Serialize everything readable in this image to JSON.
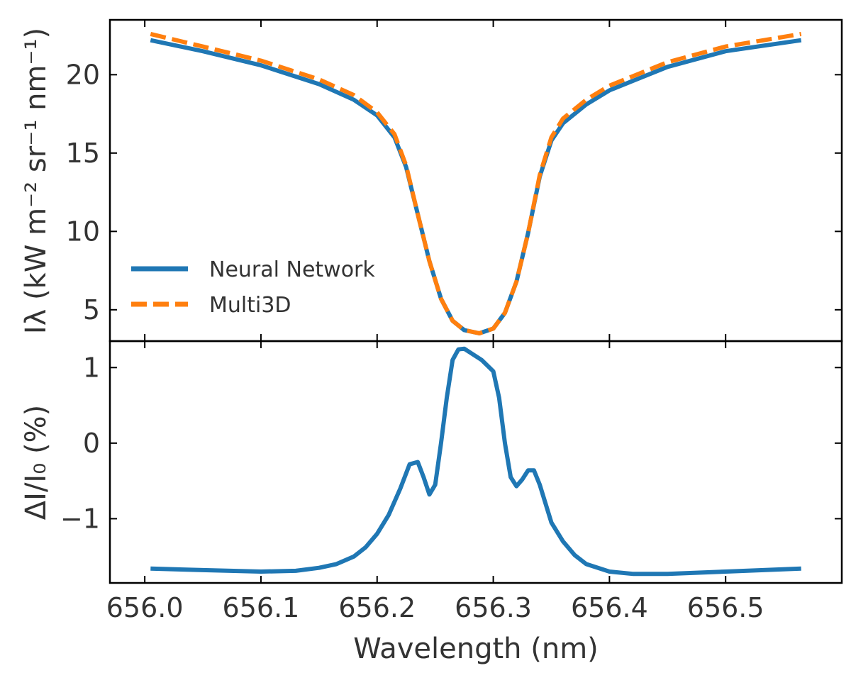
{
  "chart_data": [
    {
      "type": "line",
      "panel": "top",
      "ylabel": "Iλ (kW m⁻² sr⁻¹ nm⁻¹)",
      "xlabel": "",
      "xlim": [
        655.97,
        656.6
      ],
      "ylim": [
        3.0,
        23.5
      ],
      "yticks": [
        5,
        10,
        15,
        20
      ],
      "ytick_labels": [
        "5",
        "10",
        "15",
        "20"
      ],
      "legend": {
        "placement": "lower-left"
      },
      "series": [
        {
          "name": "Neural Network",
          "color": "#1f77b4",
          "style": "solid",
          "x": [
            656.005,
            656.05,
            656.1,
            656.15,
            656.18,
            656.2,
            656.215,
            656.225,
            656.235,
            656.245,
            656.255,
            656.265,
            656.275,
            656.288,
            656.3,
            656.31,
            656.32,
            656.33,
            656.34,
            656.35,
            656.36,
            656.38,
            656.4,
            656.45,
            656.5,
            656.565
          ],
          "y": [
            22.2,
            21.5,
            20.6,
            19.4,
            18.4,
            17.4,
            16.0,
            14.1,
            11.1,
            8.1,
            5.7,
            4.3,
            3.7,
            3.5,
            3.8,
            4.8,
            6.8,
            9.9,
            13.5,
            15.8,
            16.9,
            18.1,
            19.0,
            20.5,
            21.5,
            22.2
          ]
        },
        {
          "name": "Multi3D",
          "color": "#ff7f0e",
          "style": "dashed",
          "x": [
            656.005,
            656.05,
            656.1,
            656.15,
            656.18,
            656.2,
            656.215,
            656.225,
            656.235,
            656.245,
            656.255,
            656.265,
            656.275,
            656.288,
            656.3,
            656.31,
            656.32,
            656.33,
            656.34,
            656.35,
            656.36,
            656.38,
            656.4,
            656.45,
            656.5,
            656.565
          ],
          "y": [
            22.6,
            21.8,
            20.9,
            19.7,
            18.7,
            17.6,
            16.2,
            14.2,
            11.1,
            8.1,
            5.7,
            4.3,
            3.7,
            3.5,
            3.8,
            4.8,
            6.8,
            9.9,
            13.6,
            16.0,
            17.2,
            18.4,
            19.3,
            20.8,
            21.8,
            22.6
          ]
        }
      ]
    },
    {
      "type": "line",
      "panel": "bottom",
      "ylabel": "ΔI/I₀ (%)",
      "xlabel": "Wavelength (nm)",
      "xlim": [
        655.97,
        656.6
      ],
      "ylim": [
        -1.85,
        1.35
      ],
      "yticks": [
        -1,
        0,
        1
      ],
      "ytick_labels": [
        "−1",
        "0",
        "1"
      ],
      "xticks": [
        656.0,
        656.1,
        656.2,
        656.3,
        656.4,
        656.5
      ],
      "xtick_labels": [
        "656.0",
        "656.1",
        "656.2",
        "656.3",
        "656.4",
        "656.5"
      ],
      "series": [
        {
          "name": "Neural Network",
          "color": "#1f77b4",
          "style": "solid",
          "x": [
            656.005,
            656.05,
            656.1,
            656.13,
            656.15,
            656.165,
            656.18,
            656.19,
            656.2,
            656.21,
            656.22,
            656.228,
            656.235,
            656.24,
            656.245,
            656.25,
            656.255,
            656.26,
            656.265,
            656.27,
            656.275,
            656.28,
            656.29,
            656.3,
            656.305,
            656.31,
            656.315,
            656.32,
            656.325,
            656.33,
            656.335,
            656.34,
            656.345,
            656.35,
            656.36,
            656.37,
            656.38,
            656.4,
            656.42,
            656.45,
            656.5,
            656.565
          ],
          "y": [
            -1.66,
            -1.68,
            -1.7,
            -1.69,
            -1.65,
            -1.6,
            -1.5,
            -1.38,
            -1.2,
            -0.95,
            -0.6,
            -0.28,
            -0.25,
            -0.45,
            -0.68,
            -0.55,
            0.0,
            0.6,
            1.1,
            1.24,
            1.25,
            1.2,
            1.1,
            0.95,
            0.6,
            0.0,
            -0.45,
            -0.57,
            -0.48,
            -0.36,
            -0.36,
            -0.55,
            -0.8,
            -1.05,
            -1.3,
            -1.48,
            -1.6,
            -1.7,
            -1.73,
            -1.73,
            -1.7,
            -1.66
          ]
        }
      ]
    }
  ]
}
